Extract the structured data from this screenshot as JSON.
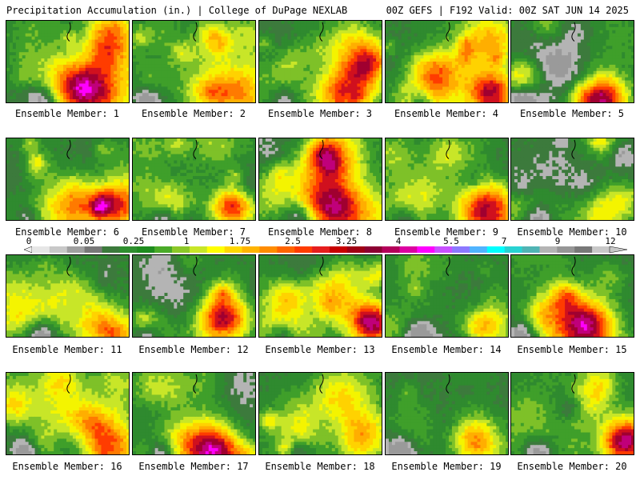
{
  "header": {
    "left": "Precipitation Accumulation (in.) | College of DuPage NEXLAB",
    "right": "00Z GEFS | F192 Valid: 00Z SAT JUN 14 2025"
  },
  "colorbar": {
    "tick_labels": [
      "0",
      "0.05",
      "0.25",
      "1",
      "1.75",
      "2.5",
      "3.25",
      "4",
      "5.5",
      "7",
      "9",
      "12"
    ],
    "colors": [
      "#e6e6e6",
      "#c8c8c8",
      "#a0a0a0",
      "#787878",
      "#3c7a3c",
      "#2f8f2f",
      "#1e8c1e",
      "#4aaa28",
      "#8cc828",
      "#c8e628",
      "#ffff00",
      "#ffd700",
      "#ffb400",
      "#ff8c00",
      "#ff6400",
      "#ff3c00",
      "#e61e1e",
      "#c80000",
      "#a00014",
      "#8c0032",
      "#b4005a",
      "#dc00a0",
      "#ff00ff",
      "#c850ff",
      "#8c78ff",
      "#50b4ff",
      "#00ffff",
      "#28d2d2",
      "#50b4b4",
      "#b4b4b4",
      "#969696",
      "#787878",
      "#c8c8c8"
    ]
  },
  "members": [
    {
      "label": "Ensemble Member: 1"
    },
    {
      "label": "Ensemble Member: 2"
    },
    {
      "label": "Ensemble Member: 3"
    },
    {
      "label": "Ensemble Member: 4"
    },
    {
      "label": "Ensemble Member: 5"
    },
    {
      "label": "Ensemble Member: 6"
    },
    {
      "label": "Ensemble Member: 7"
    },
    {
      "label": "Ensemble Member: 8"
    },
    {
      "label": "Ensemble Member: 9"
    },
    {
      "label": "Ensemble Member: 10"
    },
    {
      "label": "Ensemble Member: 11"
    },
    {
      "label": "Ensemble Member: 12"
    },
    {
      "label": "Ensemble Member: 13"
    },
    {
      "label": "Ensemble Member: 14"
    },
    {
      "label": "Ensemble Member: 15"
    },
    {
      "label": "Ensemble Member: 16"
    },
    {
      "label": "Ensemble Member: 17"
    },
    {
      "label": "Ensemble Member: 18"
    },
    {
      "label": "Ensemble Member: 19"
    },
    {
      "label": "Ensemble Member: 20"
    }
  ]
}
